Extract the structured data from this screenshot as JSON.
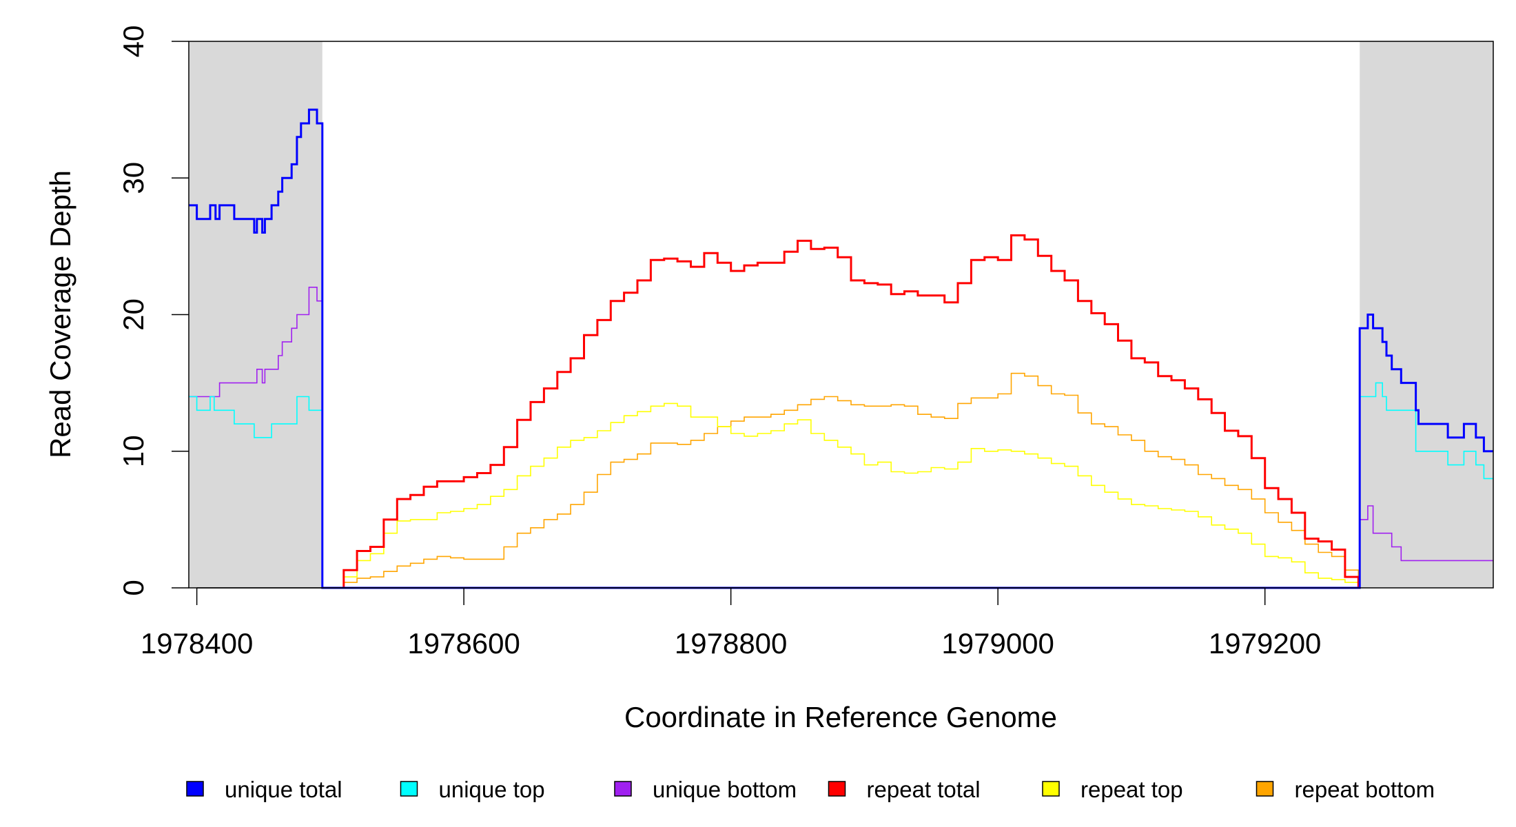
{
  "chart_data": {
    "type": "line",
    "xlabel": "Coordinate in Reference Genome",
    "ylabel": "Read Coverage Depth",
    "xlim": [
      1978394,
      1979371
    ],
    "ylim": [
      0,
      40
    ],
    "x_ticks": [
      1978400,
      1978600,
      1978800,
      1979000,
      1979200
    ],
    "x_tick_labels": [
      "1978400",
      "1978600",
      "1978800",
      "1979000",
      "1979200"
    ],
    "y_ticks": [
      0,
      10,
      20,
      30,
      40
    ],
    "y_tick_labels": [
      "0",
      "10",
      "20",
      "30",
      "40"
    ],
    "grid": false,
    "legend_position": "bottom",
    "shaded_regions": [
      [
        1978394,
        1978494
      ],
      [
        1979271,
        1979371
      ]
    ],
    "shade_color": "#D9D9D9",
    "repeat_series_x": {
      "start": 1978500,
      "step": 10
    },
    "series": [
      {
        "name": "repeat bottom",
        "color": "#FFA500",
        "kind": "regular",
        "values": [
          0,
          0.4,
          0.7,
          0.8,
          1.2,
          1.6,
          1.8,
          2.1,
          2.3,
          2.2,
          2.1,
          2.1,
          2.1,
          3,
          4,
          4.4,
          5,
          5.4,
          6.1,
          7,
          8.3,
          9.2,
          9.4,
          9.8,
          10.6,
          10.6,
          10.5,
          10.8,
          11.3,
          11.8,
          12.2,
          12.5,
          12.5,
          12.7,
          13,
          13.4,
          13.8,
          14,
          13.7,
          13.4,
          13.3,
          13.3,
          13.4,
          13.3,
          12.7,
          12.5,
          12.4,
          13.5,
          13.9,
          13.9,
          14.2,
          15.7,
          15.5,
          14.8,
          14.2,
          14.1,
          12.8,
          12,
          11.8,
          11.2,
          10.8,
          10,
          9.6,
          9.4,
          9,
          8.3,
          8,
          7.5,
          7.2,
          6.5,
          5.5,
          4.8,
          4.2,
          3.2,
          2.6,
          2.3,
          1.3,
          0
        ]
      },
      {
        "name": "repeat top",
        "color": "#FFFF00",
        "kind": "regular",
        "values": [
          0,
          0.8,
          2,
          2.5,
          4,
          4.9,
          5,
          5,
          5.5,
          5.6,
          5.8,
          6.1,
          6.7,
          7.2,
          8.2,
          8.9,
          9.5,
          10.3,
          10.8,
          11,
          11.5,
          12.1,
          12.6,
          12.9,
          13.3,
          13.5,
          13.3,
          12.5,
          12.5,
          11.8,
          11.3,
          11.1,
          11.3,
          11.5,
          12,
          12.3,
          11.3,
          10.8,
          10.3,
          9.8,
          9,
          9.2,
          8.5,
          8.4,
          8.5,
          8.8,
          8.7,
          9.2,
          10.2,
          10,
          10.1,
          10,
          9.8,
          9.5,
          9.1,
          8.9,
          8.2,
          7.5,
          7,
          6.5,
          6.1,
          6,
          5.8,
          5.7,
          5.6,
          5.2,
          4.6,
          4.3,
          4,
          3.2,
          2.3,
          2.2,
          1.9,
          1.1,
          0.7,
          0.6,
          0.4,
          0
        ]
      },
      {
        "name": "repeat total",
        "color": "#FF0000",
        "kind": "regular",
        "values": [
          0,
          1.3,
          2.7,
          3,
          5,
          6.5,
          6.8,
          7.4,
          7.8,
          7.8,
          8.1,
          8.4,
          9,
          10.3,
          12.3,
          13.6,
          14.6,
          15.8,
          16.8,
          18.5,
          19.6,
          21,
          21.6,
          22.5,
          24,
          24.1,
          23.9,
          23.5,
          24.5,
          23.8,
          23.2,
          23.6,
          23.8,
          23.8,
          24.6,
          25.4,
          24.8,
          24.9,
          24.2,
          22.5,
          22.3,
          22.2,
          21.5,
          21.7,
          21.4,
          21.4,
          20.9,
          22.3,
          24,
          24.2,
          24,
          25.8,
          25.5,
          24.3,
          23.2,
          22.5,
          21,
          20.1,
          19.3,
          18.1,
          16.8,
          16.5,
          15.5,
          15.2,
          14.6,
          13.8,
          12.8,
          11.5,
          11.1,
          9.5,
          7.3,
          6.5,
          5.5,
          3.6,
          3.4,
          2.8,
          0.8,
          0
        ]
      },
      {
        "name": "unique bottom",
        "color": "#A020F0",
        "kind": "steps",
        "steps": [
          [
            1978394,
            14
          ],
          [
            1978417,
            15
          ],
          [
            1978445,
            16
          ],
          [
            1978449,
            15
          ],
          [
            1978451,
            16
          ],
          [
            1978461,
            17
          ],
          [
            1978464,
            18
          ],
          [
            1978471,
            19
          ],
          [
            1978475,
            20
          ],
          [
            1978484,
            22
          ],
          [
            1978490,
            21
          ],
          [
            1978494,
            0
          ],
          [
            1979271,
            5
          ],
          [
            1979277,
            6
          ],
          [
            1979281,
            4
          ],
          [
            1979295,
            3
          ],
          [
            1979302,
            2
          ]
        ]
      },
      {
        "name": "unique top",
        "color": "#00FFFF",
        "kind": "steps",
        "steps": [
          [
            1978394,
            14
          ],
          [
            1978400,
            13
          ],
          [
            1978410,
            14
          ],
          [
            1978413,
            13
          ],
          [
            1978428,
            12
          ],
          [
            1978443,
            11
          ],
          [
            1978456,
            12
          ],
          [
            1978475,
            14
          ],
          [
            1978484,
            13
          ],
          [
            1978494,
            0
          ],
          [
            1979271,
            14
          ],
          [
            1979283,
            15
          ],
          [
            1979288,
            14
          ],
          [
            1979291,
            13
          ],
          [
            1979313,
            10
          ],
          [
            1979337,
            9
          ],
          [
            1979349,
            10
          ],
          [
            1979358,
            9
          ],
          [
            1979364,
            8
          ]
        ]
      },
      {
        "name": "unique total",
        "color": "#0000FF",
        "kind": "steps",
        "steps": [
          [
            1978394,
            28
          ],
          [
            1978400,
            27
          ],
          [
            1978410,
            28
          ],
          [
            1978414,
            27
          ],
          [
            1978417,
            28
          ],
          [
            1978428,
            27
          ],
          [
            1978443,
            26
          ],
          [
            1978445,
            27
          ],
          [
            1978449,
            26
          ],
          [
            1978451,
            27
          ],
          [
            1978456,
            28
          ],
          [
            1978461,
            29
          ],
          [
            1978464,
            30
          ],
          [
            1978471,
            31
          ],
          [
            1978475,
            33
          ],
          [
            1978478,
            34
          ],
          [
            1978484,
            35
          ],
          [
            1978490,
            34
          ],
          [
            1978494,
            0
          ],
          [
            1979271,
            19
          ],
          [
            1979277,
            20
          ],
          [
            1979281,
            19
          ],
          [
            1979288,
            18
          ],
          [
            1979291,
            17
          ],
          [
            1979295,
            16
          ],
          [
            1979302,
            15
          ],
          [
            1979313,
            13
          ],
          [
            1979315,
            12
          ],
          [
            1979337,
            11
          ],
          [
            1979349,
            12
          ],
          [
            1979358,
            11
          ],
          [
            1979364,
            10
          ]
        ]
      }
    ],
    "legend": [
      {
        "label": "unique total",
        "color": "#0000FF"
      },
      {
        "label": "unique top",
        "color": "#00FFFF"
      },
      {
        "label": "unique bottom",
        "color": "#A020F0"
      },
      {
        "label": "repeat total",
        "color": "#FF0000"
      },
      {
        "label": "repeat top",
        "color": "#FFFF00"
      },
      {
        "label": "repeat bottom",
        "color": "#FFA500"
      }
    ]
  }
}
